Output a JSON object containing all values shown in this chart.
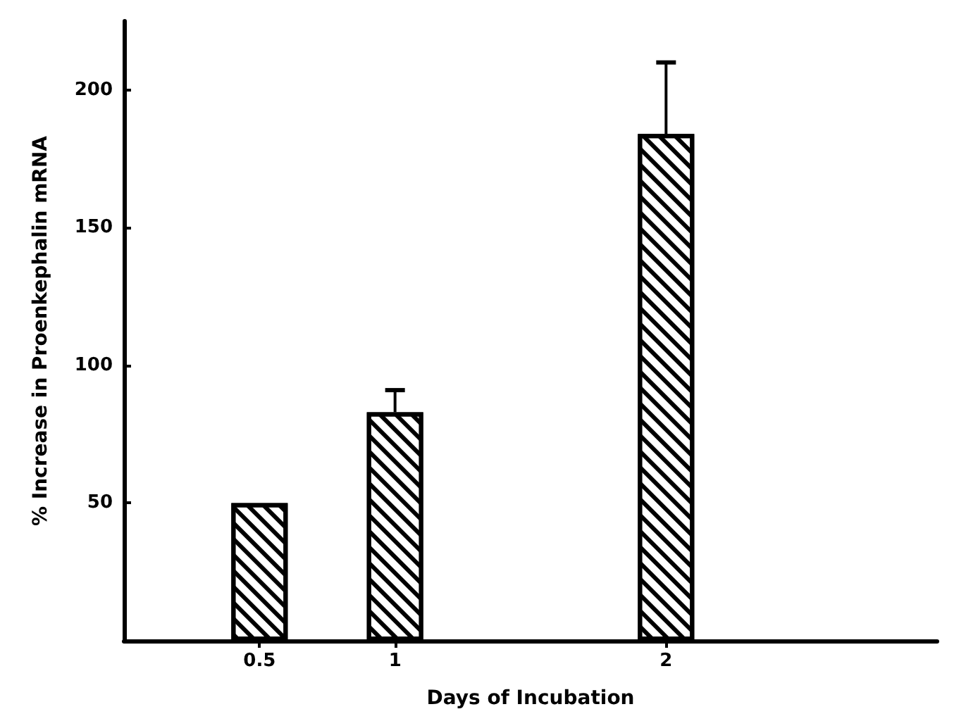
{
  "chart_data": {
    "type": "bar",
    "xlabel": "Days of Incubation",
    "ylabel": "% Increase in Proenkephalin mRNA",
    "x": [
      0.5,
      1,
      2
    ],
    "values": [
      50,
      83,
      184
    ],
    "errors": [
      null,
      [
        83,
        91
      ],
      [
        184,
        210
      ]
    ],
    "color": "#000000",
    "xlim": [
      0,
      3
    ],
    "xticks": [
      0.5,
      1,
      2
    ],
    "ylim": [
      0,
      225
    ],
    "yticks": [
      50,
      100,
      150,
      200
    ]
  }
}
